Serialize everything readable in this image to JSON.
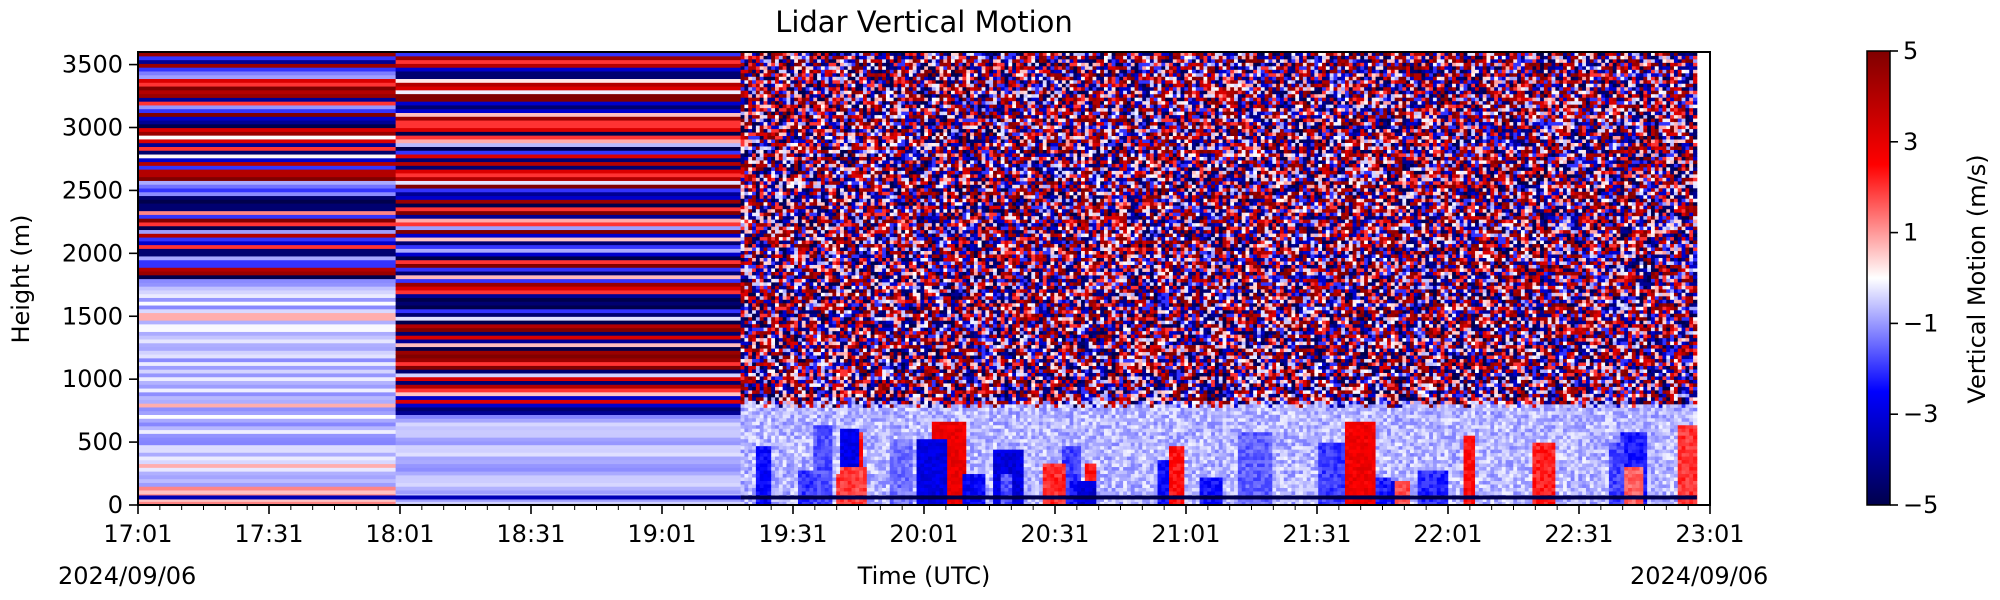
{
  "chart_data": {
    "type": "heatmap",
    "title": "Lidar Vertical Motion",
    "xlabel": "Time (UTC)",
    "ylabel": "Height (m)",
    "x_tick_labels": [
      "17:01",
      "17:31",
      "18:01",
      "18:31",
      "19:01",
      "19:31",
      "20:01",
      "20:31",
      "21:01",
      "21:31",
      "22:01",
      "22:31",
      "23:01"
    ],
    "x_tick_minutes": [
      0,
      30,
      60,
      90,
      120,
      150,
      180,
      210,
      240,
      270,
      300,
      330,
      360
    ],
    "xlim_minutes": [
      0,
      360
    ],
    "start_date_label": "2024/09/06",
    "end_date_label": "2024/09/06",
    "y_ticks": [
      0,
      500,
      1000,
      1500,
      2000,
      2500,
      3000,
      3500
    ],
    "ylim": [
      0,
      3600
    ],
    "colorbar": {
      "label": "Vertical Motion (m/s)",
      "ticks": [
        5,
        3,
        1,
        -1,
        -3,
        -5
      ],
      "tick_labels": [
        "5",
        "3",
        "1",
        "−1",
        "−3",
        "−5"
      ],
      "vmin": -5,
      "vmax": 5,
      "colormap": "seismic",
      "colors": [
        "#00004c",
        "#0000ff",
        "#ffffff",
        "#ff0000",
        "#800000"
      ]
    },
    "segments": [
      {
        "start_minute": 0,
        "end_minute": 59,
        "pattern": "horizontal stripes: strong mixed values above 1800 m, weak negative values below 1800 m"
      },
      {
        "start_minute": 59,
        "end_minute": 138,
        "pattern": "horizontal stripes: strong alternating positive and negative values from 700 m to 3600 m, weak negative values below 700 m"
      },
      {
        "start_minute": 138,
        "end_minute": 357,
        "pattern": "noisy high-magnitude values above about 750 m; weak mixed updrafts and downdrafts below 750 m"
      }
    ]
  }
}
